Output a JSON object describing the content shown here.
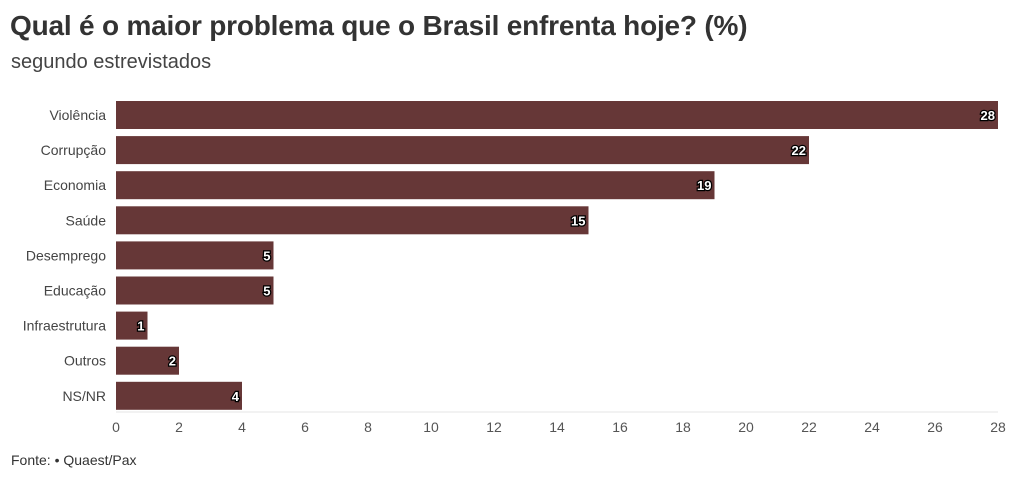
{
  "header": {
    "title": "Qual é o maior problema que o Brasil enfrenta hoje? (%)",
    "subtitle": "segundo estrevistados"
  },
  "footer": {
    "source": "Fonte: • Quaest/Pax"
  },
  "colors": {
    "bar": "#663737",
    "text": "#333333",
    "axis": "#e6e6e6"
  },
  "chart_data": {
    "type": "bar",
    "orientation": "horizontal",
    "categories": [
      "Violência",
      "Corrupção",
      "Economia",
      "Saúde",
      "Desemprego",
      "Educação",
      "Infraestrutura",
      "Outros",
      "NS/NR"
    ],
    "values": [
      28,
      22,
      19,
      15,
      5,
      5,
      1,
      2,
      4
    ],
    "xlim": [
      0,
      28
    ],
    "xticks": [
      0,
      2,
      4,
      6,
      8,
      10,
      12,
      14,
      16,
      18,
      20,
      22,
      24,
      26,
      28
    ],
    "grid": false,
    "legend": "none"
  }
}
